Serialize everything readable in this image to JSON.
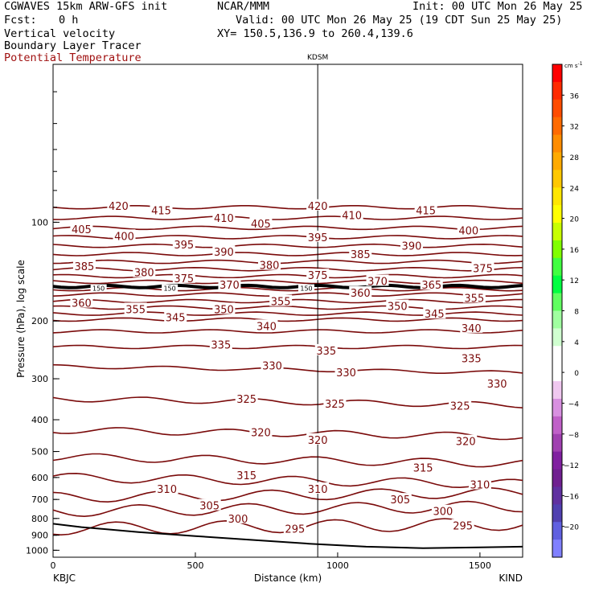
{
  "header": {
    "model": "CGWAVES 15km ARW-GFS init",
    "org": "NCAR/MMM",
    "init": "Init: 00 UTC Mon 26 May 25",
    "fcst_label": "Fcst:",
    "fcst_value": "0 h",
    "valid": "Valid: 00 UTC Mon 26 May 25 (19 CDT Sun 25 May 25)",
    "field1": "Vertical velocity",
    "field2": "Boundary Layer Tracer",
    "field3": "Potential Temperature",
    "xy": "XY= 150.5,136.9 to 260.4,139.6",
    "field3_color": "#a01010"
  },
  "chart_data": {
    "type": "line",
    "title": "",
    "xlabel": "Distance (km)",
    "ylabel": "Pressure (hPa), log scale",
    "x_log": false,
    "y_log": true,
    "xlim": [
      0,
      1650
    ],
    "ylim": [
      1050,
      33
    ],
    "x_ticks": [
      0,
      500,
      1000,
      1500
    ],
    "y_ticks": [
      100,
      200,
      300,
      400,
      500,
      600,
      700,
      800,
      900,
      1000
    ],
    "station_left": "KBJC",
    "station_right": "KIND",
    "station_mid": "KDSM",
    "station_mid_x_km": 930,
    "contour_color": "#7a0a0a",
    "theta_levels": [
      {
        "theta": 420,
        "p": 90
      },
      {
        "theta": 415,
        "p": 97
      },
      {
        "theta": 410,
        "p": 104
      },
      {
        "theta": 405,
        "p": 111
      },
      {
        "theta": 400,
        "p": 118
      },
      {
        "theta": 395,
        "p": 125
      },
      {
        "theta": 390,
        "p": 132
      },
      {
        "theta": 385,
        "p": 139
      },
      {
        "theta": 380,
        "p": 146
      },
      {
        "theta": 375,
        "p": 152
      },
      {
        "theta": 370,
        "p": 160
      },
      {
        "theta": 365,
        "p": 166
      },
      {
        "theta": 360,
        "p": 174
      },
      {
        "theta": 355,
        "p": 182
      },
      {
        "theta": 350,
        "p": 190
      },
      {
        "theta": 345,
        "p": 198
      },
      {
        "theta": 340,
        "p": 215
      },
      {
        "theta": 335,
        "p": 240
      },
      {
        "theta": 330,
        "p": 275
      },
      {
        "theta": 325,
        "p": 345
      },
      {
        "theta": 320,
        "p": 430
      },
      {
        "theta": 315,
        "p": 520
      },
      {
        "theta": 310,
        "p": 600
      },
      {
        "theta": 305,
        "p": 690
      },
      {
        "theta": 300,
        "p": 760
      },
      {
        "theta": 295,
        "p": 860
      }
    ],
    "contour_labels": [
      {
        "text": "420",
        "x": 230,
        "p": 89
      },
      {
        "text": "415",
        "x": 380,
        "p": 92
      },
      {
        "text": "420",
        "x": 930,
        "p": 89
      },
      {
        "text": "415",
        "x": 1310,
        "p": 92
      },
      {
        "text": "410",
        "x": 600,
        "p": 97
      },
      {
        "text": "410",
        "x": 1050,
        "p": 95
      },
      {
        "text": "405",
        "x": 100,
        "p": 105
      },
      {
        "text": "405",
        "x": 730,
        "p": 101
      },
      {
        "text": "400",
        "x": 250,
        "p": 110
      },
      {
        "text": "400",
        "x": 1460,
        "p": 106
      },
      {
        "text": "395",
        "x": 460,
        "p": 117
      },
      {
        "text": "395",
        "x": 930,
        "p": 111
      },
      {
        "text": "390",
        "x": 600,
        "p": 123
      },
      {
        "text": "390",
        "x": 1260,
        "p": 118
      },
      {
        "text": "385",
        "x": 1080,
        "p": 125
      },
      {
        "text": "385",
        "x": 110,
        "p": 136
      },
      {
        "text": "380",
        "x": 320,
        "p": 142
      },
      {
        "text": "380",
        "x": 760,
        "p": 135
      },
      {
        "text": "375",
        "x": 460,
        "p": 148
      },
      {
        "text": "375",
        "x": 930,
        "p": 145
      },
      {
        "text": "375",
        "x": 1510,
        "p": 138
      },
      {
        "text": "370",
        "x": 620,
        "p": 155
      },
      {
        "text": "370",
        "x": 1140,
        "p": 151
      },
      {
        "text": "365",
        "x": 1330,
        "p": 155
      },
      {
        "text": "360",
        "x": 1080,
        "p": 164
      },
      {
        "text": "360",
        "x": 100,
        "p": 176
      },
      {
        "text": "355",
        "x": 290,
        "p": 184
      },
      {
        "text": "355",
        "x": 800,
        "p": 174
      },
      {
        "text": "355",
        "x": 1480,
        "p": 170
      },
      {
        "text": "350",
        "x": 600,
        "p": 184
      },
      {
        "text": "350",
        "x": 1210,
        "p": 180
      },
      {
        "text": "345",
        "x": 430,
        "p": 195
      },
      {
        "text": "345",
        "x": 1340,
        "p": 190
      },
      {
        "text": "340",
        "x": 750,
        "p": 207
      },
      {
        "text": "340",
        "x": 1470,
        "p": 210
      },
      {
        "text": "335",
        "x": 590,
        "p": 236
      },
      {
        "text": "335",
        "x": 960,
        "p": 246
      },
      {
        "text": "335",
        "x": 1470,
        "p": 260
      },
      {
        "text": "330",
        "x": 770,
        "p": 273
      },
      {
        "text": "330",
        "x": 1030,
        "p": 287
      },
      {
        "text": "330",
        "x": 1560,
        "p": 310
      },
      {
        "text": "325",
        "x": 680,
        "p": 345
      },
      {
        "text": "325",
        "x": 990,
        "p": 357
      },
      {
        "text": "325",
        "x": 1430,
        "p": 362
      },
      {
        "text": "320",
        "x": 730,
        "p": 437
      },
      {
        "text": "320",
        "x": 930,
        "p": 460
      },
      {
        "text": "320",
        "x": 1450,
        "p": 465
      },
      {
        "text": "315",
        "x": 680,
        "p": 590
      },
      {
        "text": "315",
        "x": 1300,
        "p": 560
      },
      {
        "text": "310",
        "x": 400,
        "p": 650
      },
      {
        "text": "310",
        "x": 930,
        "p": 650
      },
      {
        "text": "310",
        "x": 1500,
        "p": 630
      },
      {
        "text": "305",
        "x": 550,
        "p": 730
      },
      {
        "text": "305",
        "x": 1220,
        "p": 700
      },
      {
        "text": "300",
        "x": 650,
        "p": 800
      },
      {
        "text": "300",
        "x": 1370,
        "p": 760
      },
      {
        "text": "295",
        "x": 850,
        "p": 860
      },
      {
        "text": "295",
        "x": 1440,
        "p": 840
      }
    ],
    "tracer_labels": [
      {
        "text": "150",
        "x": 160,
        "p": 159
      },
      {
        "text": "150",
        "x": 410,
        "p": 159
      },
      {
        "text": "150",
        "x": 890,
        "p": 159
      }
    ],
    "colorbar": {
      "unit": "cm s",
      "unit_sup": "-1",
      "labels": [
        {
          "text": "36",
          "v": 36
        },
        {
          "text": "32",
          "v": 32
        },
        {
          "text": "28",
          "v": 28
        },
        {
          "text": "24",
          "v": 24
        },
        {
          "text": "20",
          "v": 20
        },
        {
          "text": "16",
          "v": 16
        },
        {
          "text": "12",
          "v": 12
        },
        {
          "text": "8",
          "v": 8
        },
        {
          "text": "4",
          "v": 4
        },
        {
          "text": "0",
          "v": 0
        },
        {
          "text": "−4",
          "v": -4
        },
        {
          "text": "−8",
          "v": -8
        },
        {
          "text": "−12",
          "v": -12
        },
        {
          "text": "−16",
          "v": -16
        },
        {
          "text": "−20",
          "v": -20
        }
      ],
      "colors": [
        "#ff0000",
        "#ff2a00",
        "#ff4c00",
        "#ff6a00",
        "#ff8c00",
        "#ffaa00",
        "#ffc800",
        "#ffe600",
        "#ffff00",
        "#c8ff00",
        "#80ff00",
        "#40ff40",
        "#00ff40",
        "#60ff60",
        "#a0ffa0",
        "#d0ffd0",
        "#ffffff",
        "#ffffff",
        "#f0c8f0",
        "#d890e0",
        "#c060c8",
        "#a040b0",
        "#8020a0",
        "#702090",
        "#6030a0",
        "#5040b0",
        "#6060e0",
        "#8080ff"
      ]
    }
  }
}
